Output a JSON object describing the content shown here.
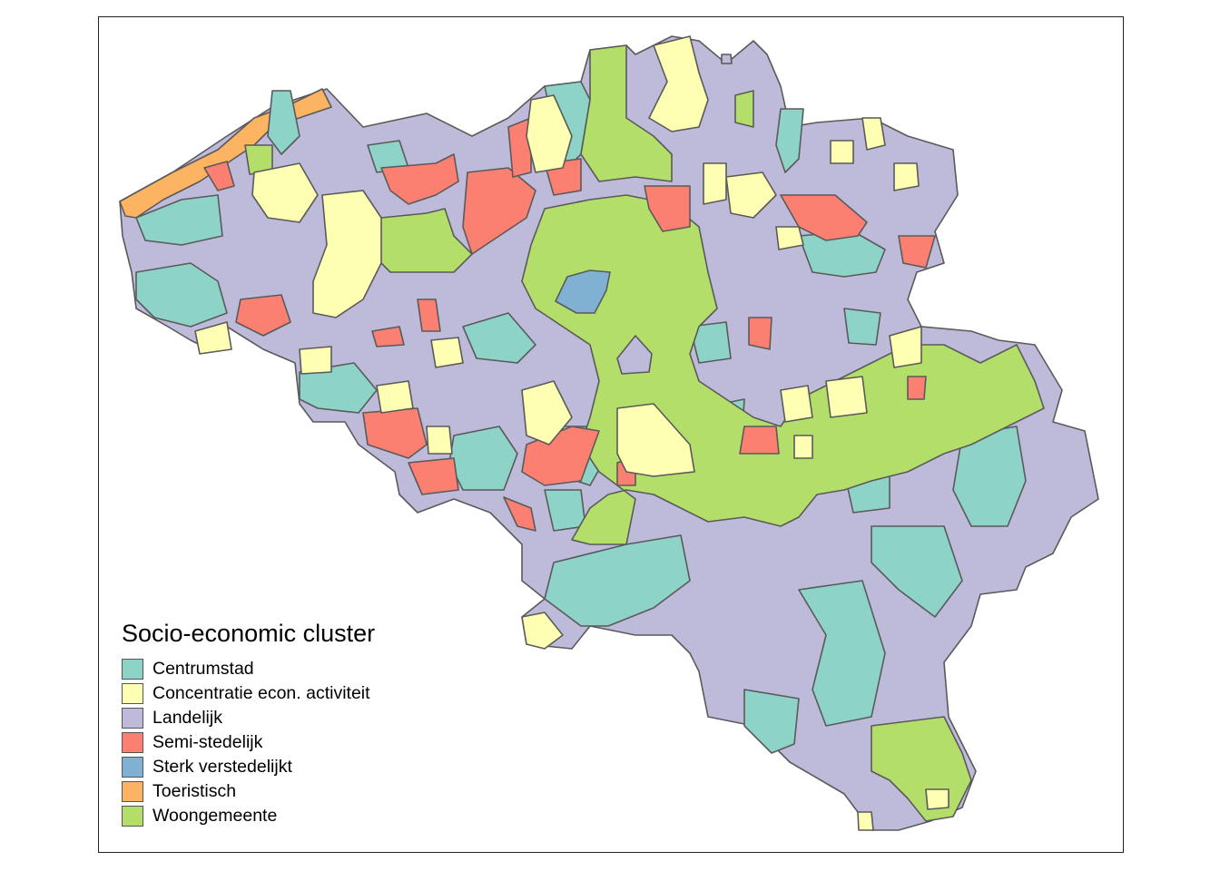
{
  "legend": {
    "title": "Socio-economic cluster",
    "items": [
      {
        "label": "Centrumstad",
        "color": "#8dd3c7"
      },
      {
        "label": "Concentratie econ. activiteit",
        "color": "#ffffb3"
      },
      {
        "label": "Landelijk",
        "color": "#bebada"
      },
      {
        "label": "Semi-stedelijk",
        "color": "#fb8072"
      },
      {
        "label": "Sterk verstedelijkt",
        "color": "#80b1d3"
      },
      {
        "label": "Toeristisch",
        "color": "#fdb462"
      },
      {
        "label": "Woongemeente",
        "color": "#b3de69"
      }
    ]
  },
  "map": {
    "border_color": "#555555",
    "background": "#ffffff"
  }
}
